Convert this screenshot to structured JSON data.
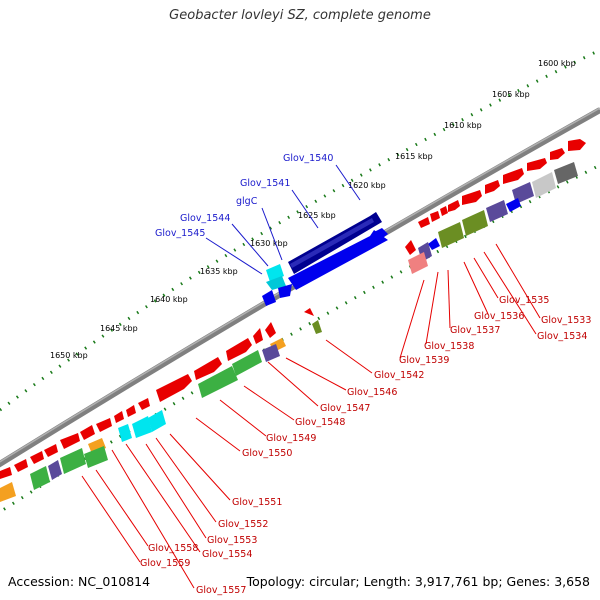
{
  "title": "Geobacter lovleyi SZ, complete genome",
  "footer": {
    "accession": "Accession: NC_010814",
    "summary": "Topology: circular; Length: 3,917,761 bp; Genes: 3,658"
  },
  "colors": {
    "backbone": "#808080",
    "ticks": "#1a7a1a",
    "red_gene": "#e80000",
    "green_gene": "#3cb043",
    "olive_gene": "#6b8e23",
    "blue_gene": "#0000ee",
    "navy_gene": "#000090",
    "cyan_gene": "#00e5ee",
    "purple_gene": "#5a4a9a",
    "orange_gene": "#f4a020",
    "grey_gene": "#c8c8c8",
    "pink_gene": "#f08080",
    "red_label": "#c00000",
    "blue_label": "#1a1acc"
  },
  "scale_labels": [
    "1600 kbp",
    "1605 kbp",
    "1610 kbp",
    "1615 kbp",
    "1620 kbp",
    "1625 kbp",
    "1630 kbp",
    "1635 kbp",
    "1640 kbp",
    "1645 kbp",
    "1650 kbp"
  ],
  "gene_labels_red": [
    "Glov_1533",
    "Glov_1534",
    "Glov_1535",
    "Glov_1536",
    "Glov_1537",
    "Glov_1538",
    "Glov_1539",
    "Glov_1542",
    "Glov_1546",
    "Glov_1547",
    "Glov_1548",
    "Glov_1549",
    "Glov_1550",
    "Glov_1551",
    "Glov_1552",
    "Glov_1553",
    "Glov_1554",
    "Glov_1558",
    "Glov_1559",
    "Glov_1557"
  ],
  "gene_labels_blue": [
    "Glov_1540",
    "Glov_1541",
    "glgC",
    "Glov_1544",
    "Glov_1545"
  ]
}
